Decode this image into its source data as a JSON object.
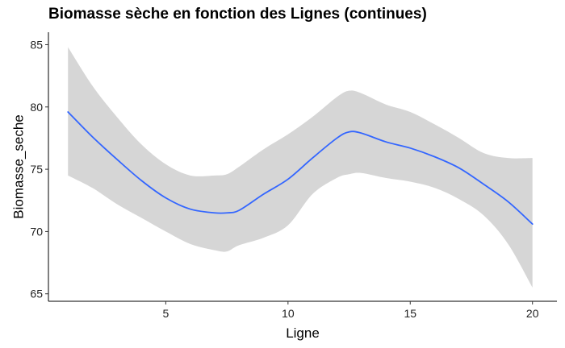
{
  "chart_data": {
    "type": "line",
    "title": "Biomasse sèche en fonction des Lignes (continues)",
    "xlabel": "Ligne",
    "ylabel": "Biomasse_seche",
    "xlim": [
      0.2,
      21
    ],
    "ylim": [
      64.4,
      86.0
    ],
    "xticks": [
      5,
      10,
      15,
      20
    ],
    "yticks": [
      65,
      70,
      75,
      80,
      85
    ],
    "grid": false,
    "legend": "none",
    "series": [
      {
        "style": "smooth-with-confidence-band",
        "x": [
          1,
          2,
          3,
          4,
          5,
          6,
          7,
          7.5,
          8,
          9,
          10,
          11,
          12,
          12.5,
          13,
          14,
          15,
          16,
          17,
          18,
          19,
          20
        ],
        "y": [
          79.6,
          77.6,
          75.8,
          74.1,
          72.7,
          71.8,
          71.5,
          71.5,
          71.7,
          73.0,
          74.2,
          75.9,
          77.5,
          78.0,
          77.9,
          77.2,
          76.7,
          76.0,
          75.1,
          73.8,
          72.4,
          70.6
        ],
        "lower": [
          74.5,
          73.5,
          72.2,
          71.1,
          70.0,
          69.0,
          68.5,
          68.4,
          68.9,
          69.5,
          70.5,
          73.0,
          74.3,
          74.6,
          74.7,
          74.3,
          74.0,
          73.5,
          72.6,
          71.3,
          69.0,
          65.5
        ],
        "upper": [
          84.8,
          81.7,
          79.2,
          77.0,
          75.4,
          74.5,
          74.5,
          74.6,
          75.2,
          76.6,
          77.8,
          79.2,
          80.8,
          81.3,
          81.1,
          80.2,
          79.6,
          78.6,
          77.5,
          76.3,
          75.9,
          75.9
        ],
        "line_color": "#3366FF",
        "band_color": "#D6D6D6"
      }
    ]
  }
}
